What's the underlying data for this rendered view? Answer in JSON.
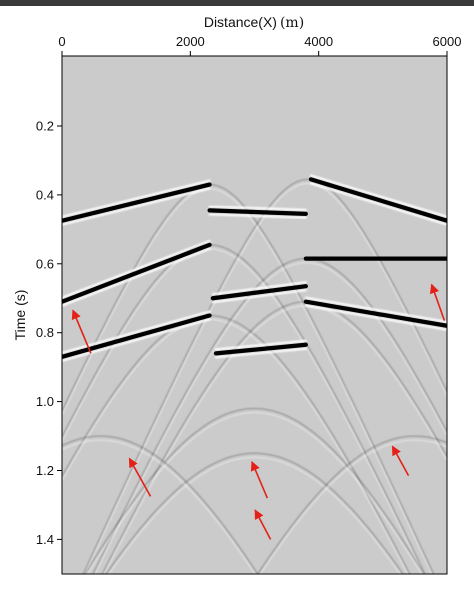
{
  "chart_data": {
    "type": "seismic-section",
    "title": "",
    "xlabel": "Distance(X)",
    "xlabel_unit": "(m)",
    "ylabel": "Time (s)",
    "x_axis_position": "top",
    "xlim": [
      0,
      6000
    ],
    "ylim": [
      0.0,
      1.5
    ],
    "y_inverted": true,
    "x_ticks": [
      0,
      2000,
      4000,
      6000
    ],
    "x_tick_labels": [
      "0",
      "2000",
      "4000",
      "6000"
    ],
    "y_ticks": [
      0.2,
      0.4,
      0.6,
      0.8,
      1.0,
      1.2,
      1.4
    ],
    "y_tick_labels": [
      "0.2",
      "0.4",
      "0.6",
      "0.8",
      "1.0",
      "1.2",
      "1.4"
    ],
    "grid": false,
    "background_color": "#cbcbcb",
    "reflection_color": "#000000",
    "arrow_color": "#e32119",
    "reflectors": [
      {
        "x": [
          0,
          2300
        ],
        "t": [
          0.475,
          0.37
        ]
      },
      {
        "x": [
          0,
          2300
        ],
        "t": [
          0.71,
          0.545
        ]
      },
      {
        "x": [
          0,
          2300
        ],
        "t": [
          0.87,
          0.75
        ]
      },
      {
        "x": [
          2300,
          3800
        ],
        "t": [
          0.445,
          0.455
        ]
      },
      {
        "x": [
          2350,
          3800
        ],
        "t": [
          0.7,
          0.665
        ]
      },
      {
        "x": [
          2400,
          3800
        ],
        "t": [
          0.86,
          0.835
        ]
      },
      {
        "x": [
          3880,
          6000
        ],
        "t": [
          0.355,
          0.475
        ]
      },
      {
        "x": [
          3800,
          6000
        ],
        "t": [
          0.585,
          0.585
        ]
      },
      {
        "x": [
          3800,
          6000
        ],
        "t": [
          0.71,
          0.78
        ]
      }
    ],
    "diffraction_apexes": [
      {
        "x": 2300,
        "t": 0.37
      },
      {
        "x": 2300,
        "t": 0.545
      },
      {
        "x": 2300,
        "t": 0.75
      },
      {
        "x": 3830,
        "t": 0.355
      },
      {
        "x": 3800,
        "t": 0.585
      },
      {
        "x": 3800,
        "t": 0.71
      },
      {
        "x": 3000,
        "t": 1.02
      },
      {
        "x": 3000,
        "t": 1.15
      },
      {
        "x": 600,
        "t": 1.1
      },
      {
        "x": 5500,
        "t": 1.1
      }
    ],
    "horizontal_events": [
      {
        "t": 1.02,
        "strength": "strong"
      },
      {
        "t": 1.12,
        "strength": "weak"
      },
      {
        "t": 1.28,
        "strength": "weak"
      }
    ],
    "arrows": [
      {
        "tail_x": 450,
        "tail_t": 0.86,
        "head_x": 170,
        "head_t": 0.735
      },
      {
        "tail_x": 1380,
        "tail_t": 1.275,
        "head_x": 1050,
        "head_t": 1.165
      },
      {
        "tail_x": 3200,
        "tail_t": 1.28,
        "head_x": 2960,
        "head_t": 1.175
      },
      {
        "tail_x": 3250,
        "tail_t": 1.4,
        "head_x": 3010,
        "head_t": 1.315
      },
      {
        "tail_x": 5400,
        "tail_t": 1.215,
        "head_x": 5150,
        "head_t": 1.13
      },
      {
        "tail_x": 5960,
        "tail_t": 0.765,
        "head_x": 5760,
        "head_t": 0.66
      }
    ]
  }
}
